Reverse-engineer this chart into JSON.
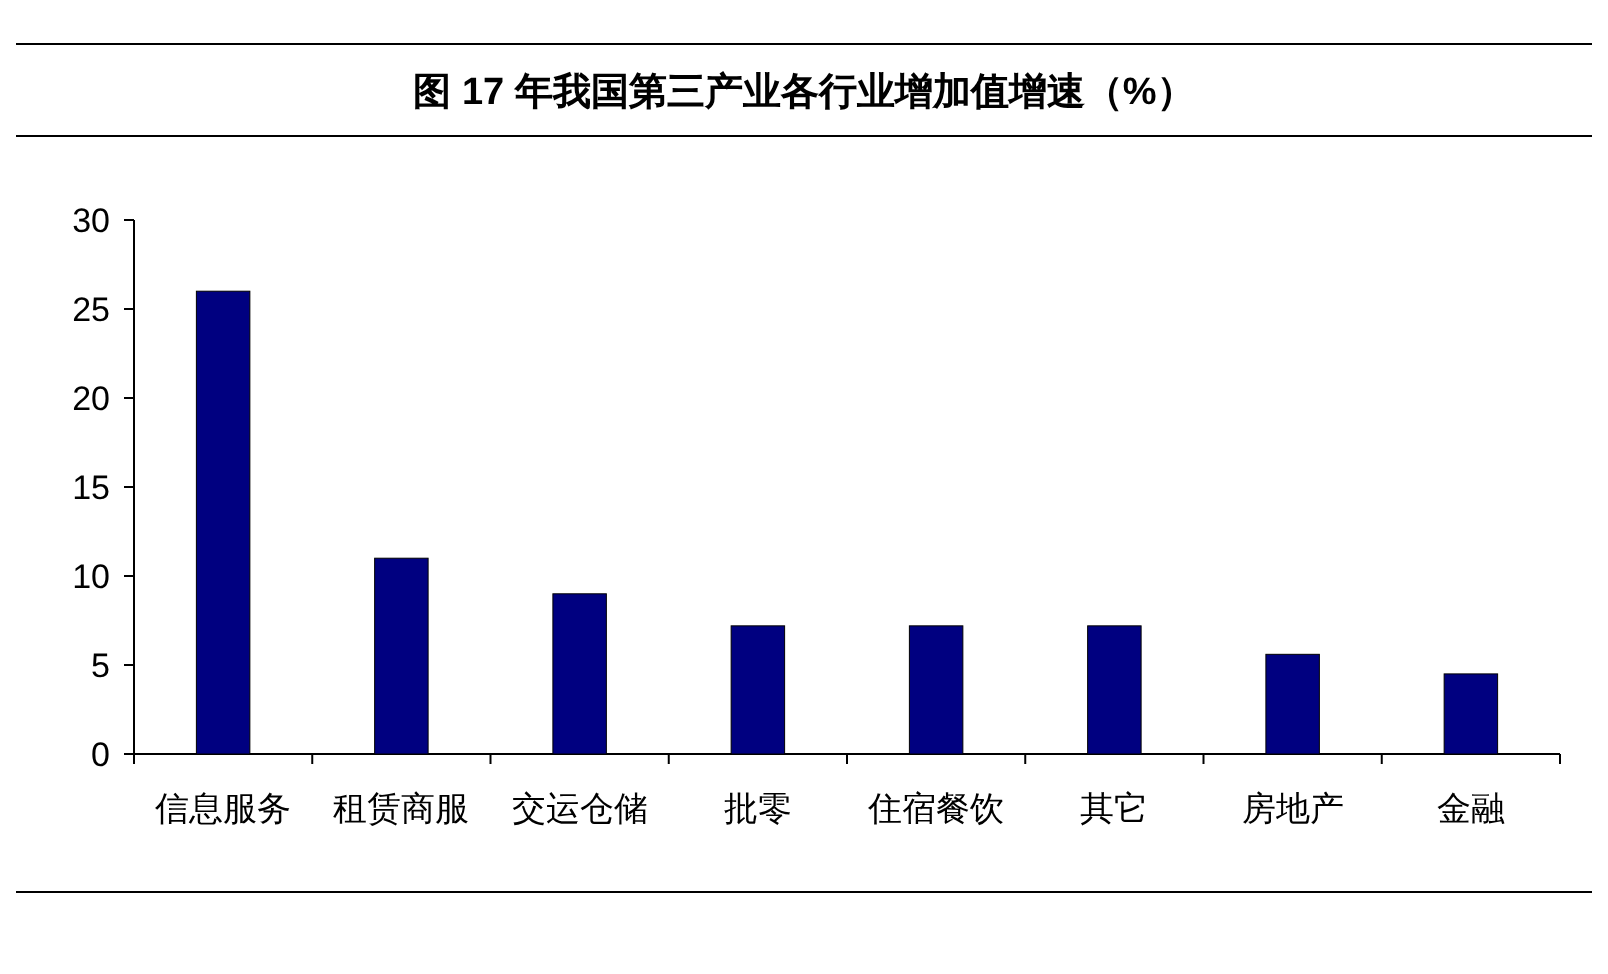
{
  "chart_data": {
    "type": "bar",
    "title": "图 17 年我国第三产业各行业增加值增速（%）",
    "categories": [
      "信息服务",
      "租赁商服",
      "交运仓储",
      "批零",
      "住宿餐饮",
      "其它",
      "房地产",
      "金融"
    ],
    "values": [
      26,
      11,
      9,
      7.2,
      7.2,
      7.2,
      5.6,
      4.5
    ],
    "color": "#000080",
    "ylim": [
      0,
      30
    ],
    "yticks": [
      0,
      5,
      10,
      15,
      20,
      25,
      30
    ]
  }
}
